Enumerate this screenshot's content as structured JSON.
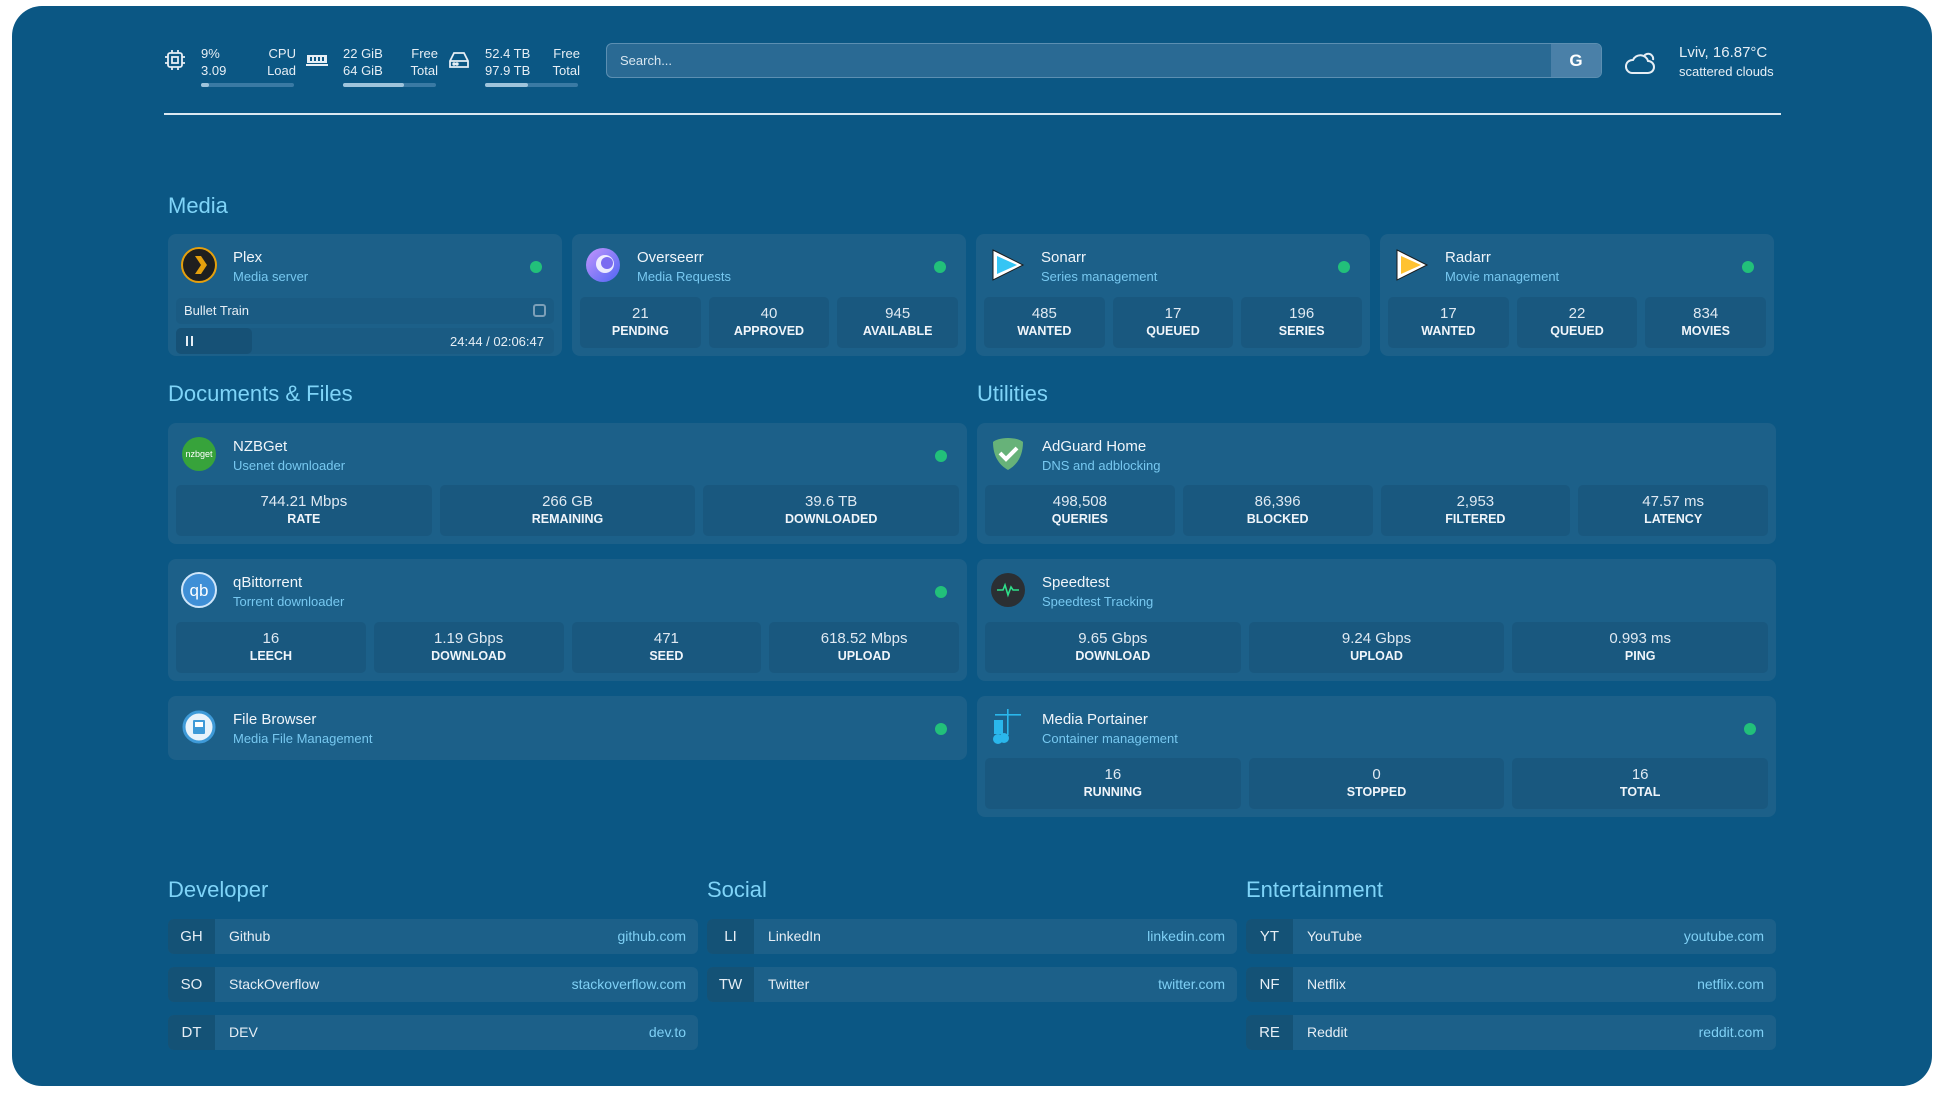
{
  "header": {
    "cpu": {
      "icon": "cpu-icon",
      "value1": "9%",
      "value2": "3.09",
      "label1": "CPU",
      "label2": "Load",
      "usage_percent": 9
    },
    "memory": {
      "icon": "memory-icon",
      "value1": "22 GiB",
      "value2": "64 GiB",
      "label1": "Free",
      "label2": "Total",
      "usage_percent": 66
    },
    "disk": {
      "icon": "disk-icon",
      "value1": "52.4 TB",
      "value2": "97.9 TB",
      "label1": "Free",
      "label2": "Total",
      "usage_percent": 46
    },
    "search": {
      "placeholder": "Search...",
      "provider_label": "G"
    },
    "weather": {
      "icon": "cloud-icon",
      "location_temp": "Lviv, 16.87°C",
      "condition": "scattered clouds"
    }
  },
  "colors": {
    "background": "#0b5784",
    "card": "#1c6089",
    "accent": "#7fd4f8",
    "status_online": "#22c07a"
  },
  "media": {
    "heading": "Media",
    "services": [
      {
        "name": "Plex",
        "desc": "Media server",
        "icon": "plex-icon",
        "status": "online",
        "now_playing": {
          "title": "Bullet Train",
          "time": "24:44 / 02:06:47",
          "progress_percent": 20,
          "state": "paused"
        }
      },
      {
        "name": "Overseerr",
        "desc": "Media Requests",
        "icon": "overseerr-icon",
        "status": "online",
        "stats": [
          {
            "value": "21",
            "label": "PENDING"
          },
          {
            "value": "40",
            "label": "APPROVED"
          },
          {
            "value": "945",
            "label": "AVAILABLE"
          }
        ]
      },
      {
        "name": "Sonarr",
        "desc": "Series management",
        "icon": "sonarr-icon",
        "status": "online",
        "stats": [
          {
            "value": "485",
            "label": "WANTED"
          },
          {
            "value": "17",
            "label": "QUEUED"
          },
          {
            "value": "196",
            "label": "SERIES"
          }
        ]
      },
      {
        "name": "Radarr",
        "desc": "Movie management",
        "icon": "radarr-icon",
        "status": "online",
        "stats": [
          {
            "value": "17",
            "label": "WANTED"
          },
          {
            "value": "22",
            "label": "QUEUED"
          },
          {
            "value": "834",
            "label": "MOVIES"
          }
        ]
      }
    ]
  },
  "documents": {
    "heading": "Documents & Files",
    "services": [
      {
        "name": "NZBGet",
        "desc": "Usenet downloader",
        "icon": "nzbget-icon",
        "status": "online",
        "stats": [
          {
            "value": "744.21 Mbps",
            "label": "RATE"
          },
          {
            "value": "266 GB",
            "label": "REMAINING"
          },
          {
            "value": "39.6 TB",
            "label": "DOWNLOADED"
          }
        ]
      },
      {
        "name": "qBittorrent",
        "desc": "Torrent downloader",
        "icon": "qbittorrent-icon",
        "status": "online",
        "stats": [
          {
            "value": "16",
            "label": "LEECH"
          },
          {
            "value": "1.19 Gbps",
            "label": "DOWNLOAD"
          },
          {
            "value": "471",
            "label": "SEED"
          },
          {
            "value": "618.52 Mbps",
            "label": "UPLOAD"
          }
        ]
      },
      {
        "name": "File Browser",
        "desc": "Media File Management",
        "icon": "file-browser-icon",
        "status": "online"
      }
    ]
  },
  "utilities": {
    "heading": "Utilities",
    "services": [
      {
        "name": "AdGuard Home",
        "desc": "DNS and adblocking",
        "icon": "adguard-icon",
        "stats": [
          {
            "value": "498,508",
            "label": "QUERIES"
          },
          {
            "value": "86,396",
            "label": "BLOCKED"
          },
          {
            "value": "2,953",
            "label": "FILTERED"
          },
          {
            "value": "47.57 ms",
            "label": "LATENCY"
          }
        ]
      },
      {
        "name": "Speedtest",
        "desc": "Speedtest Tracking",
        "icon": "speedtest-icon",
        "stats": [
          {
            "value": "9.65 Gbps",
            "label": "DOWNLOAD"
          },
          {
            "value": "9.24 Gbps",
            "label": "UPLOAD"
          },
          {
            "value": "0.993 ms",
            "label": "PING"
          }
        ]
      },
      {
        "name": "Media Portainer",
        "desc": "Container management",
        "icon": "portainer-icon",
        "status": "online",
        "stats": [
          {
            "value": "16",
            "label": "RUNNING"
          },
          {
            "value": "0",
            "label": "STOPPED"
          },
          {
            "value": "16",
            "label": "TOTAL"
          }
        ]
      }
    ]
  },
  "bookmarks": [
    {
      "heading": "Developer",
      "items": [
        {
          "abbr": "GH",
          "name": "Github",
          "url": "github.com"
        },
        {
          "abbr": "SO",
          "name": "StackOverflow",
          "url": "stackoverflow.com"
        },
        {
          "abbr": "DT",
          "name": "DEV",
          "url": "dev.to"
        }
      ]
    },
    {
      "heading": "Social",
      "items": [
        {
          "abbr": "LI",
          "name": "LinkedIn",
          "url": "linkedin.com"
        },
        {
          "abbr": "TW",
          "name": "Twitter",
          "url": "twitter.com"
        }
      ]
    },
    {
      "heading": "Entertainment",
      "items": [
        {
          "abbr": "YT",
          "name": "YouTube",
          "url": "youtube.com"
        },
        {
          "abbr": "NF",
          "name": "Netflix",
          "url": "netflix.com"
        },
        {
          "abbr": "RE",
          "name": "Reddit",
          "url": "reddit.com"
        }
      ]
    }
  ]
}
